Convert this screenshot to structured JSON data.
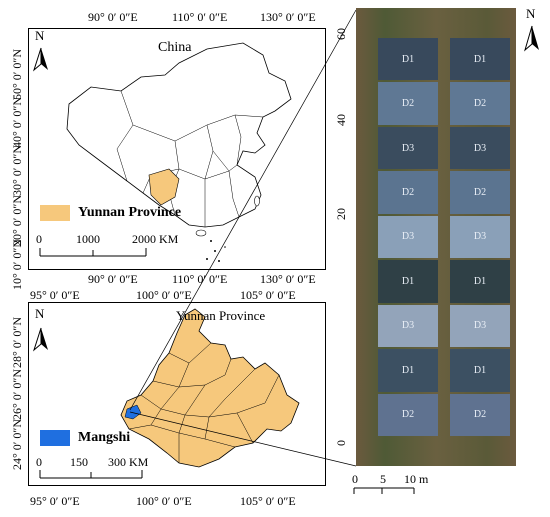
{
  "top_map": {
    "title": "China",
    "lon_ticks": [
      "90° 0′ 0″E",
      "110° 0′ 0″E",
      "130° 0′ 0″E"
    ],
    "lat_ticks": [
      "50° 0′ 0″N",
      "40° 0′ 0″N",
      "30° 0′ 0″N",
      "20° 0′ 0″N",
      "10° 0′ 0″N"
    ],
    "legend_label": "Yunnan Province",
    "legend_color": "#f6c87c",
    "scale_labels": [
      "0",
      "1000",
      "2000 KM"
    ]
  },
  "bottom_map": {
    "title": "Yunnan Province",
    "lon_ticks": [
      "95° 0′ 0″E",
      "100° 0′ 0″E",
      "105° 0′ 0″E"
    ],
    "lat_ticks": [
      "28° 0′ 0″N",
      "26° 0′ 0″N",
      "24° 0′ 0″N"
    ],
    "legend_label": "Mangshi",
    "legend_color": "#1f6fe0",
    "fill_color": "#f6c87c",
    "scale_labels": [
      "0",
      "150",
      "300 KM"
    ]
  },
  "north_label": "N",
  "photo": {
    "y_ticks": [
      "0",
      "20",
      "40",
      "60"
    ],
    "scale_labels": [
      "0",
      "5",
      "10 m"
    ],
    "plots_left": [
      "D1",
      "D2",
      "D3",
      "D2",
      "D3",
      "D1",
      "D3",
      "D1",
      "D2"
    ],
    "plots_right": [
      "D1",
      "D2",
      "D3",
      "D2",
      "D3",
      "D1",
      "D3",
      "D1",
      "D2"
    ],
    "plot_shades": [
      "#38495c",
      "#5f7894",
      "#3a4c5e",
      "#5b7490",
      "#8aa0b8",
      "#2f4046",
      "#93a4ba",
      "#3c5062",
      "#5f7290"
    ]
  }
}
